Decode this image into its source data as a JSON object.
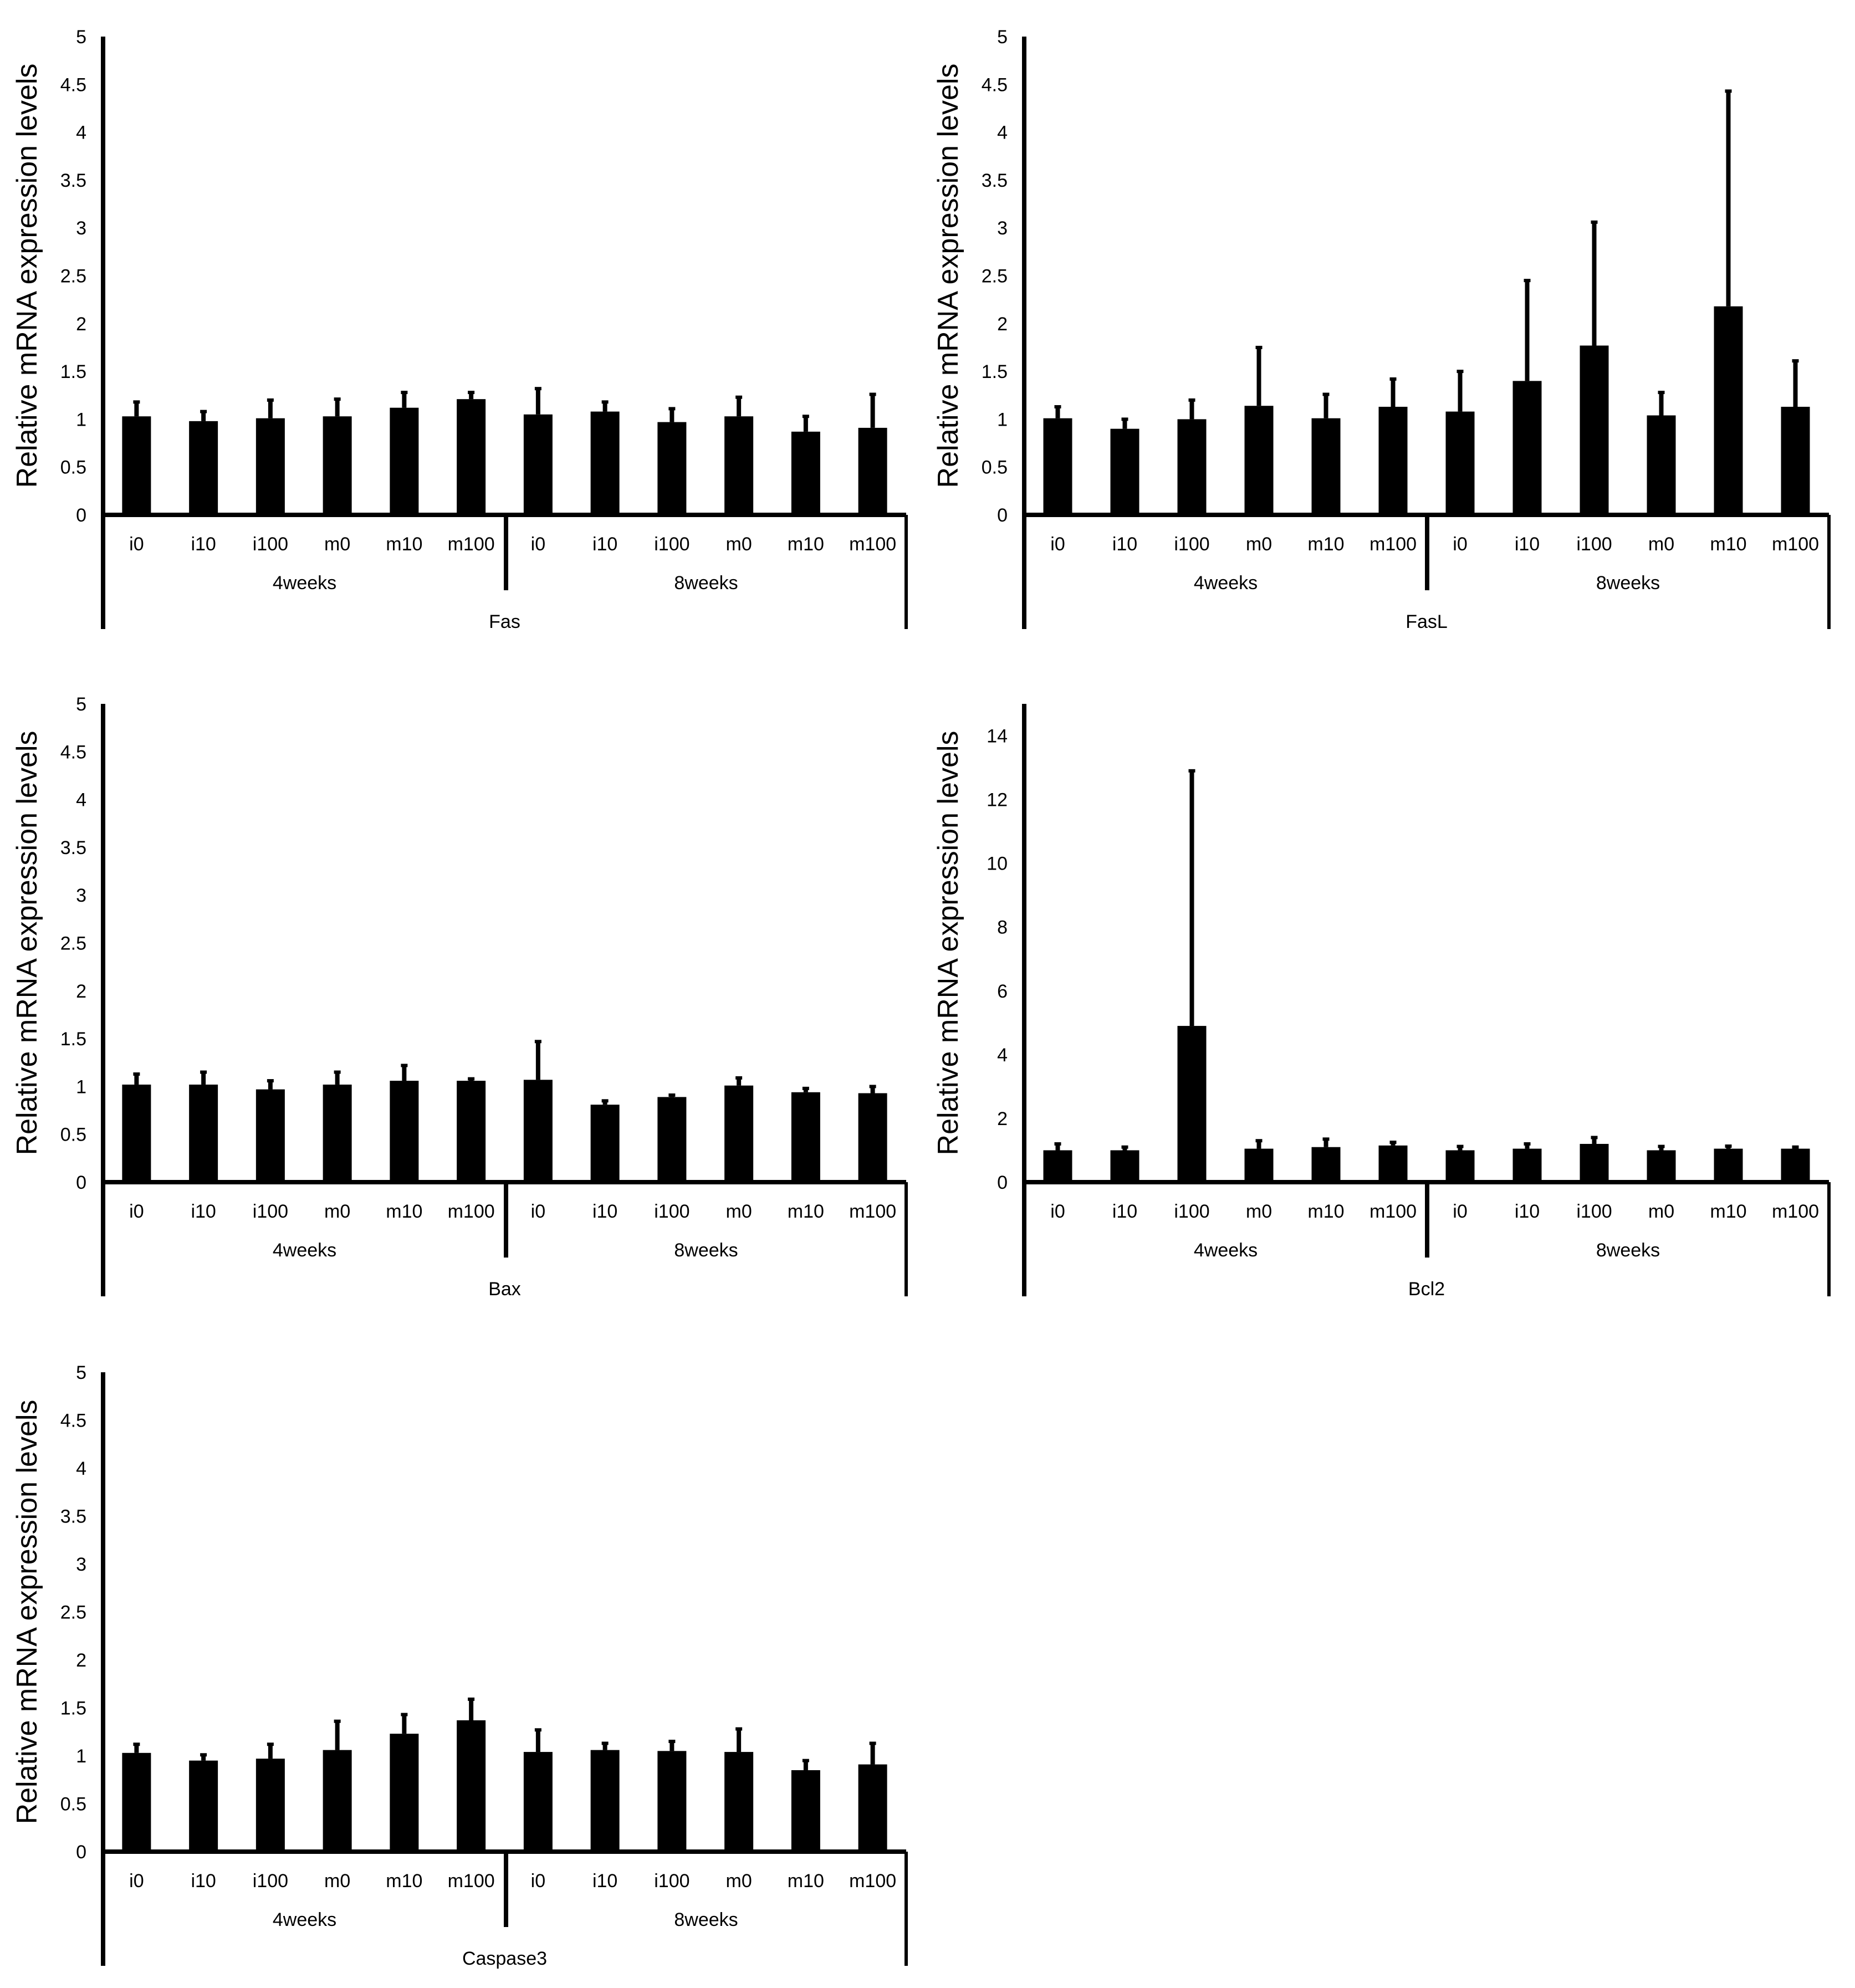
{
  "figure": {
    "ylabel": "Relative mRNA expression levels",
    "categories": [
      "i0",
      "i10",
      "i100",
      "m0",
      "m10",
      "m100",
      "i0",
      "i10",
      "i100",
      "m0",
      "m10",
      "m100"
    ],
    "groups": [
      "4weeks",
      "8weeks"
    ]
  },
  "chart_data": [
    {
      "type": "bar",
      "gene": "Fas",
      "ylabel": "Relative mRNA expression levels",
      "ylim": [
        0,
        5
      ],
      "yticks": [
        "0",
        "0.5",
        "1",
        "1.5",
        "2",
        "2.5",
        "3",
        "3.5",
        "4",
        "4.5",
        "5"
      ],
      "categories": [
        "i0",
        "i10",
        "i100",
        "m0",
        "m10",
        "m100",
        "i0",
        "i10",
        "i100",
        "m0",
        "m10",
        "m100"
      ],
      "groups": [
        "4weeks",
        "8weeks"
      ],
      "values": [
        1.03,
        0.98,
        1.01,
        1.03,
        1.12,
        1.21,
        1.05,
        1.08,
        0.97,
        1.03,
        0.87,
        0.91
      ],
      "errors": [
        0.15,
        0.1,
        0.19,
        0.18,
        0.16,
        0.07,
        0.27,
        0.1,
        0.14,
        0.2,
        0.16,
        0.35
      ],
      "bar_color": "#000000"
    },
    {
      "type": "bar",
      "gene": "FasL",
      "ylabel": "Relative mRNA expression levels",
      "ylim": [
        0,
        5
      ],
      "yticks": [
        "0",
        "0.5",
        "1",
        "1.5",
        "2",
        "2.5",
        "3",
        "3.5",
        "4",
        "4.5",
        "5"
      ],
      "categories": [
        "i0",
        "i10",
        "i100",
        "m0",
        "m10",
        "m100",
        "i0",
        "i10",
        "i100",
        "m0",
        "m10",
        "m100"
      ],
      "groups": [
        "4weeks",
        "8weeks"
      ],
      "values": [
        1.01,
        0.9,
        1.0,
        1.14,
        1.01,
        1.13,
        1.08,
        1.4,
        1.77,
        1.04,
        2.18,
        1.13
      ],
      "errors": [
        0.12,
        0.1,
        0.2,
        0.61,
        0.25,
        0.29,
        0.42,
        1.05,
        1.29,
        0.24,
        2.25,
        0.48
      ],
      "bar_color": "#000000"
    },
    {
      "type": "bar",
      "gene": "Bax",
      "ylabel": "Relative mRNA expression levels",
      "ylim": [
        0,
        5
      ],
      "yticks": [
        "0",
        "0.5",
        "1",
        "1.5",
        "2",
        "2.5",
        "3",
        "3.5",
        "4",
        "4.5",
        "5"
      ],
      "categories": [
        "i0",
        "i10",
        "i100",
        "m0",
        "m10",
        "m100",
        "i0",
        "i10",
        "i100",
        "m0",
        "m10",
        "m100"
      ],
      "groups": [
        "4weeks",
        "8weeks"
      ],
      "values": [
        1.02,
        1.02,
        0.97,
        1.02,
        1.06,
        1.06,
        1.07,
        0.81,
        0.89,
        1.01,
        0.94,
        0.93
      ],
      "errors": [
        0.11,
        0.13,
        0.09,
        0.13,
        0.16,
        0.02,
        0.4,
        0.04,
        0.02,
        0.08,
        0.04,
        0.07
      ],
      "bar_color": "#000000"
    },
    {
      "type": "bar",
      "gene": "Bcl2",
      "ylabel": "Relative mRNA expression levels",
      "ylim": [
        0,
        15
      ],
      "yticks": [
        "0",
        "2",
        "4",
        "6",
        "8",
        "10",
        "12",
        "14"
      ],
      "categories": [
        "i0",
        "i10",
        "i100",
        "m0",
        "m10",
        "m100",
        "i0",
        "i10",
        "i100",
        "m0",
        "m10",
        "m100"
      ],
      "groups": [
        "4weeks",
        "8weeks"
      ],
      "values": [
        1.0,
        1.0,
        4.9,
        1.05,
        1.1,
        1.15,
        1.0,
        1.05,
        1.2,
        1.0,
        1.05,
        1.05
      ],
      "errors": [
        0.2,
        0.1,
        8.0,
        0.25,
        0.25,
        0.1,
        0.12,
        0.15,
        0.2,
        0.12,
        0.08,
        0.05
      ],
      "bar_color": "#000000"
    },
    {
      "type": "bar",
      "gene": "Caspase3",
      "ylabel": "Relative mRNA expression levels",
      "ylim": [
        0,
        5
      ],
      "yticks": [
        "0",
        "0.5",
        "1",
        "1.5",
        "2",
        "2.5",
        "3",
        "3.5",
        "4",
        "4.5",
        "5"
      ],
      "categories": [
        "i0",
        "i10",
        "i100",
        "m0",
        "m10",
        "m100",
        "i0",
        "i10",
        "i100",
        "m0",
        "m10",
        "m100"
      ],
      "groups": [
        "4weeks",
        "8weeks"
      ],
      "values": [
        1.03,
        0.95,
        0.97,
        1.06,
        1.23,
        1.37,
        1.04,
        1.06,
        1.05,
        1.04,
        0.85,
        0.91
      ],
      "errors": [
        0.09,
        0.06,
        0.15,
        0.3,
        0.2,
        0.22,
        0.23,
        0.07,
        0.1,
        0.24,
        0.1,
        0.22
      ],
      "bar_color": "#000000"
    }
  ]
}
